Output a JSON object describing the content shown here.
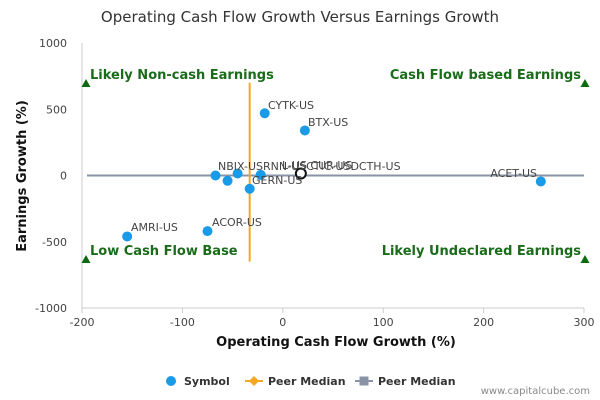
{
  "chart_data": {
    "type": "scatter",
    "title": "Operating Cash Flow Growth Versus Earnings Growth",
    "xlabel": "Operating Cash Flow Growth (%)",
    "ylabel": "Earnings Growth (%)",
    "xlim": [
      -200,
      300
    ],
    "ylim": [
      -1000,
      1000
    ],
    "xticks": [
      -200,
      -100,
      0,
      100,
      200,
      300
    ],
    "yticks": [
      1000,
      500,
      0,
      -500,
      -1000
    ],
    "grid": false,
    "legend_position": "bottom",
    "colors": {
      "symbol": "#1a9be8",
      "peer_median_x": "#f5a623",
      "peer_median_y": "#8a94a6",
      "quadrant_text": "#1a6b1a",
      "axis": "#cccccc"
    },
    "points": [
      {
        "label": "CYTK-US",
        "x": -18,
        "y": 470
      },
      {
        "label": "BTX-US",
        "x": 22,
        "y": 340
      },
      {
        "label": "ACET-US",
        "x": 257,
        "y": -45
      },
      {
        "label": "CUR-US",
        "x": 18,
        "y": 15,
        "highlight": true
      },
      {
        "label": "NBIX-US",
        "x": -67,
        "y": 0
      },
      {
        "label": "CTIC-US",
        "x": -45,
        "y": 15
      },
      {
        "label": "RNN-US",
        "x": -55,
        "y": -40
      },
      {
        "label": "DCTH-US",
        "x": -22,
        "y": 5
      },
      {
        "label": "GERN-US",
        "x": -33,
        "y": -100
      },
      {
        "label": "ACOR-US",
        "x": -75,
        "y": -420
      },
      {
        "label": "AMRI-US",
        "x": -155,
        "y": -460
      }
    ],
    "label_texts": {
      "CYTK-US": "CYTK-US",
      "BTX-US": "BTX-US",
      "ACET-US": "ACET-US",
      "cluster": "NBIX-USRNN-USCTIC-USDCTH-US",
      "cur_overlap": "L-US CUR-US",
      "GERN-US": "GERN-US",
      "ACOR-US": "ACOR-US",
      "AMRI-US": "AMRI-US"
    },
    "peer_median": {
      "x": -33,
      "y": 0
    },
    "quadrant_labels": {
      "top_left": "Likely Non-cash Earnings",
      "top_right": "Cash Flow based Earnings",
      "bottom_left": "Low Cash Flow Base",
      "bottom_right": "Likely Undeclared Earnings"
    },
    "legend": [
      {
        "name": "Symbol",
        "marker": "circle"
      },
      {
        "name": "Peer Median",
        "marker": "diamond-line"
      },
      {
        "name": "Peer Median",
        "marker": "square-line"
      }
    ]
  },
  "watermark": "www.capitalcube.com"
}
